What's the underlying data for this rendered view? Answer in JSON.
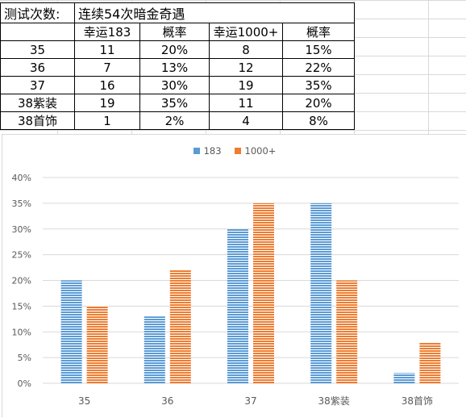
{
  "sheet": {
    "title_label": "测试次数:",
    "title_value": "连续54次暗金奇遇",
    "headers": [
      "",
      "幸运183",
      "概率",
      "幸运1000+",
      "概率"
    ],
    "rows": [
      [
        "35",
        "11",
        "20%",
        "8",
        "15%"
      ],
      [
        "36",
        "7",
        "13%",
        "12",
        "22%"
      ],
      [
        "37",
        "16",
        "30%",
        "19",
        "35%"
      ],
      [
        "38紫装",
        "19",
        "35%",
        "11",
        "20%"
      ],
      [
        "38首饰",
        "1",
        "2%",
        "4",
        "8%"
      ]
    ]
  },
  "chart_data": {
    "type": "bar",
    "categories": [
      "35",
      "36",
      "37",
      "38紫装",
      "38首饰"
    ],
    "series": [
      {
        "name": "183",
        "values": [
          0.2,
          0.13,
          0.3,
          0.35,
          0.02
        ],
        "color": "#5b9bd5"
      },
      {
        "name": "1000+",
        "values": [
          0.15,
          0.22,
          0.35,
          0.2,
          0.08
        ],
        "color": "#ed7d31"
      }
    ],
    "ylim": [
      0,
      0.4
    ],
    "yticks": [
      "0%",
      "5%",
      "10%",
      "15%",
      "20%",
      "25%",
      "30%",
      "35%",
      "40%"
    ],
    "grid": true,
    "legend_position": "top-center",
    "bar_fill": "horizontal-stripes"
  }
}
